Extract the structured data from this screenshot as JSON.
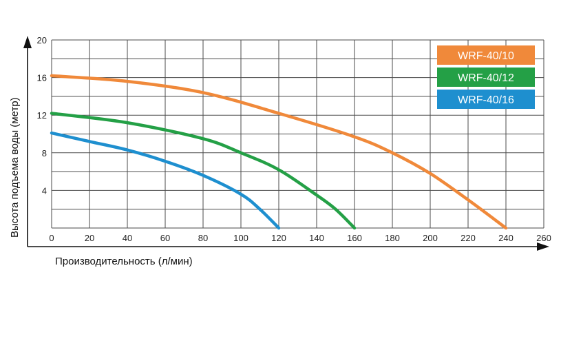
{
  "chart_data": {
    "type": "line",
    "xlabel": "Производительность (л/мин)",
    "ylabel": "Высота подъема воды (метр)",
    "xlim": [
      0,
      260
    ],
    "ylim": [
      0,
      20
    ],
    "x_ticks": [
      "0",
      "20",
      "40",
      "60",
      "80",
      "100",
      "120",
      "140",
      "160",
      "180",
      "200",
      "220",
      "240",
      "260"
    ],
    "y_ticks": [
      "4",
      "8",
      "12",
      "16",
      "20"
    ],
    "grid": true,
    "legend_position": "top-right",
    "series": [
      {
        "name": "WRF-40/10",
        "color": "#f0893a",
        "points": [
          [
            0,
            16.2
          ],
          [
            40,
            15.6
          ],
          [
            80,
            14.4
          ],
          [
            120,
            12.2
          ],
          [
            160,
            9.7
          ],
          [
            180,
            8.0
          ],
          [
            200,
            5.8
          ],
          [
            220,
            3.0
          ],
          [
            240,
            0
          ]
        ]
      },
      {
        "name": "WRF-40/12",
        "color": "#24a046",
        "points": [
          [
            0,
            12.2
          ],
          [
            40,
            11.2
          ],
          [
            80,
            9.5
          ],
          [
            100,
            8.0
          ],
          [
            120,
            6.2
          ],
          [
            140,
            3.5
          ],
          [
            150,
            2.0
          ],
          [
            160,
            0
          ]
        ]
      },
      {
        "name": "WRF-40/16",
        "color": "#1e8fcf",
        "points": [
          [
            0,
            10.1
          ],
          [
            20,
            9.2
          ],
          [
            40,
            8.3
          ],
          [
            60,
            7.1
          ],
          [
            80,
            5.6
          ],
          [
            100,
            3.6
          ],
          [
            110,
            2.0
          ],
          [
            120,
            0
          ]
        ]
      }
    ]
  }
}
